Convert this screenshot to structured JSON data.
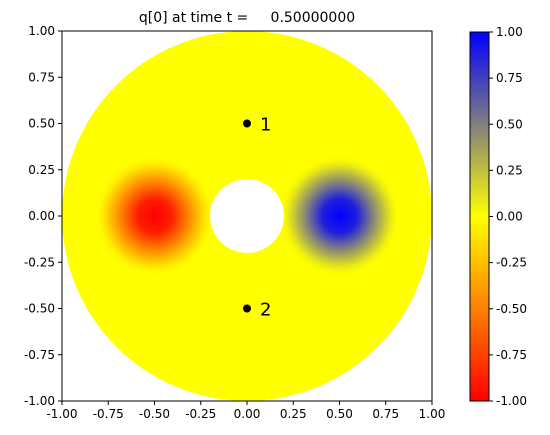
{
  "title": "q[0] at time t =     0.50000000",
  "chart_data": [
    {
      "type": "heatmap",
      "title": "q[0] at time t =     0.50000000",
      "xlabel": "",
      "ylabel": "",
      "xlim": [
        -1.0,
        1.0
      ],
      "ylim": [
        -1.0,
        1.0
      ],
      "grid": false,
      "x_ticks": [
        "-1.00",
        "-0.75",
        "-0.50",
        "-0.25",
        "0.00",
        "0.25",
        "0.50",
        "0.75",
        "1.00"
      ],
      "y_ticks": [
        "1.00",
        "0.75",
        "0.50",
        "0.25",
        "0.00",
        "-0.25",
        "-0.50",
        "-0.75",
        "-1.00"
      ],
      "domain": {
        "shape": "annulus",
        "outer_radius": 1.0,
        "inner_radius": 0.2,
        "center": [
          0.0,
          0.0
        ]
      },
      "background_value": 0.0,
      "blobs": [
        {
          "center": [
            -0.5,
            0.0
          ],
          "value": -1.0,
          "sigma": 0.1
        },
        {
          "center": [
            0.5,
            0.0
          ],
          "value": 1.0,
          "sigma": 0.1
        }
      ],
      "markers": [
        {
          "label": "1",
          "x": 0.0,
          "y": 0.5
        },
        {
          "label": "2",
          "x": 0.0,
          "y": -0.5
        }
      ]
    },
    {
      "type": "colorbar",
      "range": [
        -1.0,
        1.0
      ],
      "colormap": [
        {
          "value": -1.0,
          "color": "#ff0000"
        },
        {
          "value": 0.0,
          "color": "#ffff00"
        },
        {
          "value": 1.0,
          "color": "#0000ff"
        }
      ],
      "ticks": [
        "1.00",
        "0.75",
        "0.50",
        "0.25",
        "0.00",
        "-0.25",
        "-0.50",
        "-0.75",
        "-1.00"
      ],
      "tick_values": [
        1.0,
        0.75,
        0.5,
        0.25,
        0.0,
        -0.25,
        -0.5,
        -0.75,
        -1.0
      ]
    }
  ]
}
